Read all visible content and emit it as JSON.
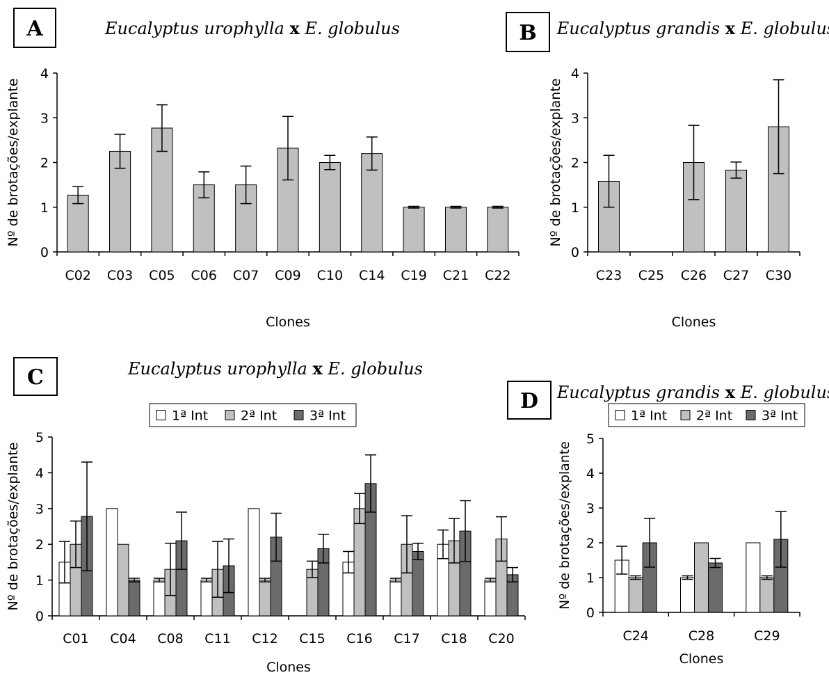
{
  "chart_data": [
    {
      "panel": "A",
      "type": "bar",
      "title": {
        "part1": "Eucalyptus urophylla",
        "x": "x",
        "part2": "E. globulus"
      },
      "xlabel": "Clones",
      "ylabel": "Nº de brotações/explante",
      "ylim": [
        0,
        4
      ],
      "yticks": [
        0,
        1,
        2,
        3,
        4
      ],
      "categories": [
        "C02",
        "C03",
        "C05",
        "C06",
        "C07",
        "C09",
        "C10",
        "C14",
        "C19",
        "C21",
        "C22"
      ],
      "series": [
        {
          "values": [
            1.27,
            2.25,
            2.77,
            1.5,
            1.5,
            2.32,
            2.0,
            2.2,
            1.0,
            1.0,
            1.0
          ],
          "errors": [
            0.19,
            0.38,
            0.52,
            0.29,
            0.42,
            0.71,
            0.16,
            0.37,
            0.02,
            0.02,
            0.02
          ],
          "color": "#c0c0c0"
        }
      ]
    },
    {
      "panel": "B",
      "type": "bar",
      "title": {
        "part1": "Eucalyptus grandis",
        "x": "x",
        "part2": "E. globulus"
      },
      "xlabel": "Clones",
      "ylabel": "Nº de brotações/explante",
      "ylim": [
        0,
        4
      ],
      "yticks": [
        0,
        1,
        2,
        3,
        4
      ],
      "categories": [
        "C23",
        "C25",
        "C26",
        "C27",
        "C30"
      ],
      "series": [
        {
          "values": [
            1.58,
            0,
            2.0,
            1.83,
            2.8
          ],
          "errors": [
            0.58,
            0,
            0.83,
            0.18,
            1.05
          ],
          "color": "#c0c0c0"
        }
      ]
    },
    {
      "panel": "C",
      "type": "bar",
      "title": {
        "part1": "Eucalyptus urophylla",
        "x": "x",
        "part2": "E. globulus"
      },
      "xlabel": "Clones",
      "ylabel": "Nº de brotações/explante",
      "ylim": [
        0,
        5
      ],
      "yticks": [
        0,
        1,
        2,
        3,
        4,
        5
      ],
      "categories": [
        "C01",
        "C04",
        "C08",
        "C11",
        "C12",
        "C15",
        "C16",
        "C17",
        "C18",
        "C20"
      ],
      "series": [
        {
          "name": "1ª Int",
          "color": "#ffffff",
          "values": [
            1.5,
            3.0,
            1.0,
            1.0,
            3.0,
            0,
            1.5,
            1.0,
            2.0,
            1.0
          ],
          "errors": [
            0.58,
            0,
            0.05,
            0.05,
            0,
            0,
            0.3,
            0.05,
            0.4,
            0.05
          ]
        },
        {
          "name": "2ª Int",
          "color": "#c0c0c0",
          "values": [
            2.0,
            2.0,
            1.3,
            1.3,
            1.0,
            1.3,
            3.0,
            2.0,
            2.1,
            2.15
          ],
          "errors": [
            0.65,
            0,
            0.73,
            0.78,
            0.05,
            0.23,
            0.42,
            0.8,
            0.62,
            0.62
          ]
        },
        {
          "name": "3ª Int",
          "color": "#6b6b6b",
          "values": [
            2.78,
            1.0,
            2.1,
            1.4,
            2.2,
            1.88,
            3.7,
            1.8,
            2.37,
            1.15
          ],
          "errors": [
            1.52,
            0.05,
            0.8,
            0.75,
            0.67,
            0.4,
            0.8,
            0.23,
            0.85,
            0.2
          ]
        }
      ]
    },
    {
      "panel": "D",
      "type": "bar",
      "title": {
        "part1": "Eucalyptus grandis",
        "x": "x",
        "part2": "E. globulus"
      },
      "xlabel": "Clones",
      "ylabel": "Nº de brotações/explante",
      "ylim": [
        0,
        5
      ],
      "yticks": [
        0,
        1,
        2,
        3,
        4,
        5
      ],
      "categories": [
        "C24",
        "C28",
        "C29"
      ],
      "series": [
        {
          "name": "1ª Int",
          "color": "#ffffff",
          "values": [
            1.5,
            1.0,
            2.0
          ],
          "errors": [
            0.4,
            0.05,
            0
          ]
        },
        {
          "name": "2ª Int",
          "color": "#c0c0c0",
          "values": [
            1.0,
            2.0,
            1.0
          ],
          "errors": [
            0.05,
            0,
            0.05
          ]
        },
        {
          "name": "3ª Int",
          "color": "#6b6b6b",
          "values": [
            2.0,
            1.42,
            2.1
          ],
          "errors": [
            0.7,
            0.13,
            0.8
          ]
        }
      ]
    }
  ]
}
